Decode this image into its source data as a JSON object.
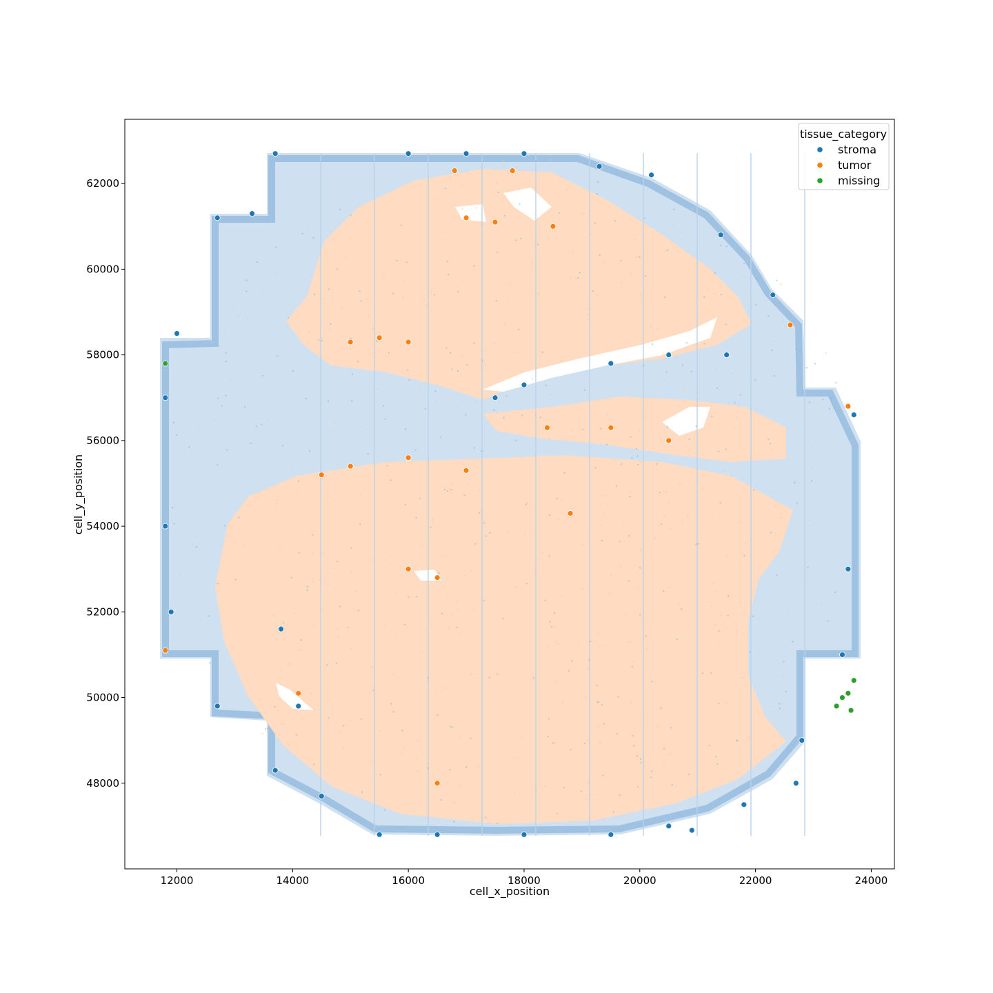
{
  "chart_data": {
    "type": "scatter",
    "xlabel": "cell_x_position",
    "ylabel": "cell_y_position",
    "xlim": [
      11100,
      24400
    ],
    "ylim": [
      46000,
      63500
    ],
    "xticks": [
      12000,
      14000,
      16000,
      18000,
      20000,
      22000,
      24000
    ],
    "yticks": [
      48000,
      50000,
      52000,
      54000,
      56000,
      58000,
      60000,
      62000
    ],
    "xtick_labels": [
      "12000",
      "14000",
      "16000",
      "18000",
      "20000",
      "22000",
      "24000"
    ],
    "ytick_labels": [
      "48000",
      "50000",
      "52000",
      "54000",
      "56000",
      "58000",
      "60000",
      "62000"
    ],
    "legend": {
      "title": "tissue_category",
      "placement": "top-right",
      "entries": [
        "stroma",
        "tumor",
        "missing"
      ]
    },
    "grid": false,
    "series": [
      {
        "name": "stroma",
        "color": "#1f77b4",
        "points": [
          [
            12000,
            58500
          ],
          [
            11800,
            57000
          ],
          [
            11800,
            54000
          ],
          [
            11900,
            52000
          ],
          [
            12700,
            61200
          ],
          [
            12700,
            49800
          ],
          [
            13300,
            61300
          ],
          [
            13700,
            62700
          ],
          [
            13700,
            48300
          ],
          [
            14500,
            47700
          ],
          [
            15500,
            46800
          ],
          [
            16500,
            46800
          ],
          [
            18000,
            46800
          ],
          [
            19500,
            46800
          ],
          [
            20500,
            47000
          ],
          [
            20900,
            46900
          ],
          [
            21800,
            47500
          ],
          [
            22700,
            48000
          ],
          [
            22800,
            49000
          ],
          [
            23700,
            56600
          ],
          [
            23500,
            51000
          ],
          [
            23600,
            53000
          ],
          [
            22300,
            59400
          ],
          [
            21500,
            58000
          ],
          [
            20500,
            58000
          ],
          [
            19500,
            57800
          ],
          [
            18000,
            57300
          ],
          [
            17500,
            57000
          ],
          [
            16000,
            62700
          ],
          [
            17000,
            62700
          ],
          [
            18000,
            62700
          ],
          [
            19300,
            62400
          ],
          [
            20200,
            62200
          ],
          [
            21400,
            60800
          ],
          [
            13800,
            51600
          ],
          [
            14100,
            49800
          ]
        ]
      },
      {
        "name": "tumor",
        "color": "#ff7f0e",
        "points": [
          [
            15500,
            58400
          ],
          [
            16000,
            58300
          ],
          [
            15000,
            58300
          ],
          [
            17000,
            61200
          ],
          [
            17500,
            61100
          ],
          [
            18500,
            61000
          ],
          [
            18400,
            56300
          ],
          [
            19500,
            56300
          ],
          [
            20500,
            56000
          ],
          [
            16000,
            55600
          ],
          [
            15000,
            55400
          ],
          [
            17000,
            55300
          ],
          [
            14500,
            55200
          ],
          [
            16500,
            52800
          ],
          [
            16000,
            53000
          ],
          [
            18800,
            54300
          ],
          [
            16500,
            48000
          ],
          [
            23600,
            56800
          ],
          [
            22600,
            58700
          ],
          [
            11800,
            51100
          ],
          [
            14100,
            50100
          ],
          [
            17800,
            62300
          ],
          [
            16800,
            62300
          ]
        ]
      },
      {
        "name": "missing",
        "color": "#2ca02c",
        "points": [
          [
            23700,
            50400
          ],
          [
            23600,
            50100
          ],
          [
            23650,
            49700
          ],
          [
            23500,
            50000
          ],
          [
            23400,
            49800
          ],
          [
            11800,
            57800
          ]
        ]
      }
    ]
  }
}
